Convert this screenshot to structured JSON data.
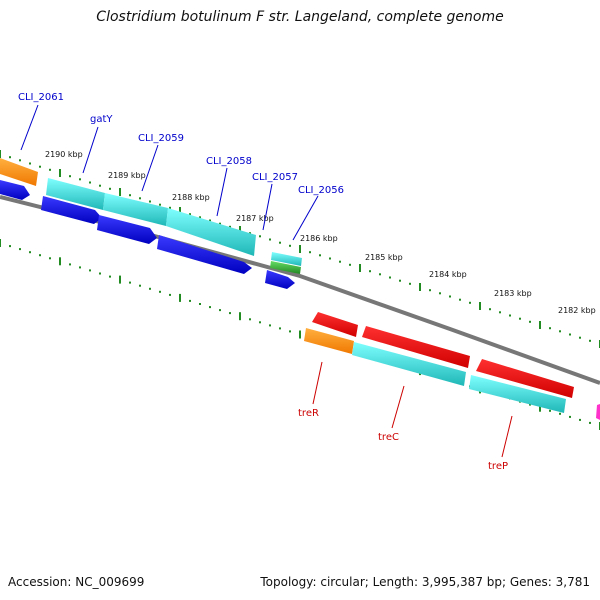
{
  "title": "Clostridium botulinum F str. Langeland, complete genome",
  "accession": "Accession: NC_009699",
  "topology": "Topology: circular; Length: 3,995,387 bp; Genes: 3,781",
  "ticks": [
    {
      "label": "2190 kbp"
    },
    {
      "label": "2189 kbp"
    },
    {
      "label": "2188 kbp"
    },
    {
      "label": "2187 kbp"
    },
    {
      "label": "2186 kbp"
    },
    {
      "label": "2185 kbp"
    },
    {
      "label": "2184 kbp"
    },
    {
      "label": "2183 kbp"
    },
    {
      "label": "2182 kbp"
    }
  ],
  "genes_top": [
    {
      "label": "CLI_2061",
      "color": "#0000cc"
    },
    {
      "label": "gatY",
      "color": "#0000cc"
    },
    {
      "label": "CLI_2059",
      "color": "#0000cc"
    },
    {
      "label": "CLI_2058",
      "color": "#0000cc"
    },
    {
      "label": "CLI_2057",
      "color": "#0000cc"
    },
    {
      "label": "CLI_2056",
      "color": "#0000cc"
    }
  ],
  "genes_bottom": [
    {
      "label": "treR",
      "color": "#cc0000"
    },
    {
      "label": "treC",
      "color": "#cc0000"
    },
    {
      "label": "treP",
      "color": "#cc0000"
    }
  ],
  "colors": {
    "blue": "#0a0ae6",
    "cyan": "#22cccc",
    "orange": "#ff8c00",
    "red": "#ee0000",
    "green": "#33aa33",
    "magenta": "#ff33cc",
    "backbone": "#777777",
    "tick": "#228b22"
  }
}
